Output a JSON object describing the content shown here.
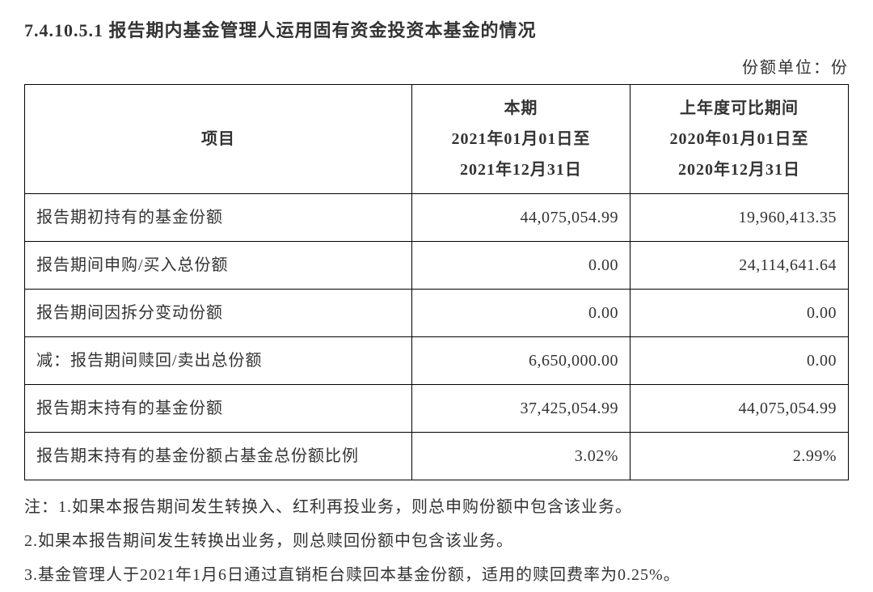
{
  "section_number": "7.4.10.5.1",
  "section_title": "报告期内基金管理人运用固有资金投资本基金的情况",
  "unit_label": "份额单位：份",
  "table": {
    "columns": [
      "项目",
      "本期\n2021年01月01日至\n2021年12月31日",
      "上年度可比期间\n2020年01月01日至\n2020年12月31日"
    ],
    "col_header_item": "项目",
    "col_header_current_l1": "本期",
    "col_header_current_l2": "2021年01月01日至",
    "col_header_current_l3": "2021年12月31日",
    "col_header_prev_l1": "上年度可比期间",
    "col_header_prev_l2": "2020年01月01日至",
    "col_header_prev_l3": "2020年12月31日",
    "rows": [
      {
        "label": "报告期初持有的基金份额",
        "current": "44,075,054.99",
        "prev": "19,960,413.35"
      },
      {
        "label": "报告期间申购/买入总份额",
        "current": "0.00",
        "prev": "24,114,641.64"
      },
      {
        "label": "报告期间因拆分变动份额",
        "current": "0.00",
        "prev": "0.00"
      },
      {
        "label": "减：报告期间赎回/卖出总份额",
        "current": "6,650,000.00",
        "prev": "0.00"
      },
      {
        "label": "报告期末持有的基金份额",
        "current": "37,425,054.99",
        "prev": "44,075,054.99"
      },
      {
        "label": "报告期末持有的基金份额占基金总份额比例",
        "current": "3.02%",
        "prev": "2.99%"
      }
    ]
  },
  "notes": {
    "n1": "注：1.如果本报告期间发生转换入、红利再投业务，则总申购份额中包含该业务。",
    "n2": "2.如果本报告期间发生转换出业务，则总赎回份额中包含该业务。",
    "n3": "3.基金管理人于2021年1月6日通过直销柜台赎回本基金份额，适用的赎回费率为0.25%。"
  },
  "styling": {
    "background_color": "#ffffff",
    "text_color": "#333333",
    "border_color": "#000000",
    "title_fontsize": 22,
    "body_fontsize": 20,
    "font_family": "SimSun"
  }
}
